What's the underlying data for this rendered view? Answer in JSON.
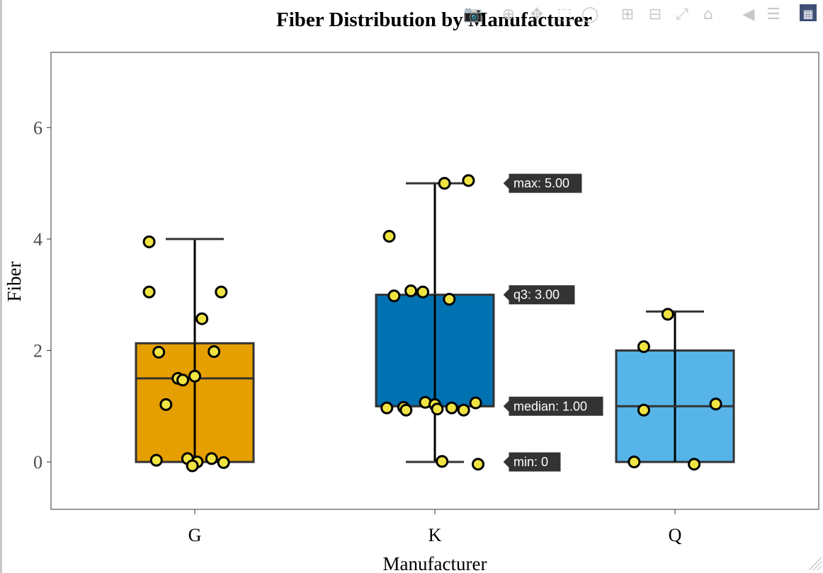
{
  "chart_data": {
    "type": "box",
    "title": "Fiber Distribution by Manufacturer",
    "xlabel": "Manufacturer",
    "ylabel": "Fiber",
    "ylim": [
      -0.85,
      7.35
    ],
    "yticks": [
      0,
      2,
      4,
      6
    ],
    "grid": false,
    "categories": [
      "G",
      "K",
      "Q"
    ],
    "boxes": [
      {
        "category": "G",
        "color": "#E69F00",
        "min": 0,
        "q1": 0,
        "median": 1.5,
        "q3": 2.13,
        "max": 4
      },
      {
        "category": "K",
        "color": "#0072B2",
        "min": 0,
        "q1": 1,
        "median": 1,
        "q3": 3,
        "max": 5
      },
      {
        "category": "Q",
        "color": "#56B4E9",
        "min": 0,
        "q1": 0,
        "median": 1,
        "q3": 2,
        "max": 2.7
      }
    ],
    "points": [
      {
        "category": "G",
        "points": [
          [
            -0.19,
            3.95
          ],
          [
            -0.19,
            3.05
          ],
          [
            0.11,
            3.05
          ],
          [
            0.03,
            2.57
          ],
          [
            -0.15,
            1.97
          ],
          [
            0.08,
            1.98
          ],
          [
            -0.07,
            1.5
          ],
          [
            -0.05,
            1.47
          ],
          [
            0.0,
            1.54
          ],
          [
            -0.12,
            1.03
          ],
          [
            -0.16,
            0.03
          ],
          [
            -0.03,
            0.06
          ],
          [
            0.07,
            0.06
          ],
          [
            0.01,
            0.0
          ],
          [
            -0.01,
            -0.07
          ],
          [
            0.12,
            -0.01
          ]
        ]
      },
      {
        "category": "K",
        "points": [
          [
            0.04,
            5.0
          ],
          [
            0.14,
            5.05
          ],
          [
            -0.19,
            4.05
          ],
          [
            -0.17,
            2.98
          ],
          [
            -0.1,
            3.07
          ],
          [
            -0.05,
            3.05
          ],
          [
            0.06,
            2.92
          ],
          [
            -0.2,
            0.97
          ],
          [
            -0.13,
            0.98
          ],
          [
            -0.12,
            0.93
          ],
          [
            -0.04,
            1.07
          ],
          [
            0.0,
            1.03
          ],
          [
            0.01,
            0.95
          ],
          [
            0.07,
            0.97
          ],
          [
            0.12,
            0.93
          ],
          [
            0.17,
            1.06
          ],
          [
            0.03,
            0.01
          ],
          [
            0.18,
            -0.04
          ]
        ]
      },
      {
        "category": "Q",
        "points": [
          [
            -0.03,
            2.65
          ],
          [
            -0.13,
            2.07
          ],
          [
            -0.13,
            0.93
          ],
          [
            0.17,
            1.04
          ],
          [
            -0.17,
            0.0
          ],
          [
            0.08,
            -0.04
          ]
        ]
      }
    ],
    "point_color": "#F0E442",
    "hover": {
      "category": "K",
      "labels": [
        {
          "text": "max: 5.00",
          "y": 5.0
        },
        {
          "text": "q3: 3.00",
          "y": 3.0
        },
        {
          "text": "median: 1.00",
          "y": 1.0
        },
        {
          "text": "min: 0",
          "y": 0
        }
      ]
    }
  },
  "modebar": [
    {
      "name": "camera-icon",
      "glyph": "📷"
    },
    {
      "name": "zoom-icon",
      "glyph": "⊕"
    },
    {
      "name": "pan-icon",
      "glyph": "✥"
    },
    {
      "name": "box-select-icon",
      "glyph": "⬚"
    },
    {
      "name": "lasso-icon",
      "glyph": "◯"
    },
    {
      "name": "zoom-in-icon",
      "glyph": "⊞"
    },
    {
      "name": "zoom-out-icon",
      "glyph": "⊟"
    },
    {
      "name": "autoscale-icon",
      "glyph": "⤢"
    },
    {
      "name": "home-icon",
      "glyph": "⌂"
    },
    {
      "name": "spike-icon",
      "glyph": "◀"
    },
    {
      "name": "compare-hover-icon",
      "glyph": "☰"
    },
    {
      "name": "plotly-logo-icon",
      "glyph": "▦"
    }
  ]
}
